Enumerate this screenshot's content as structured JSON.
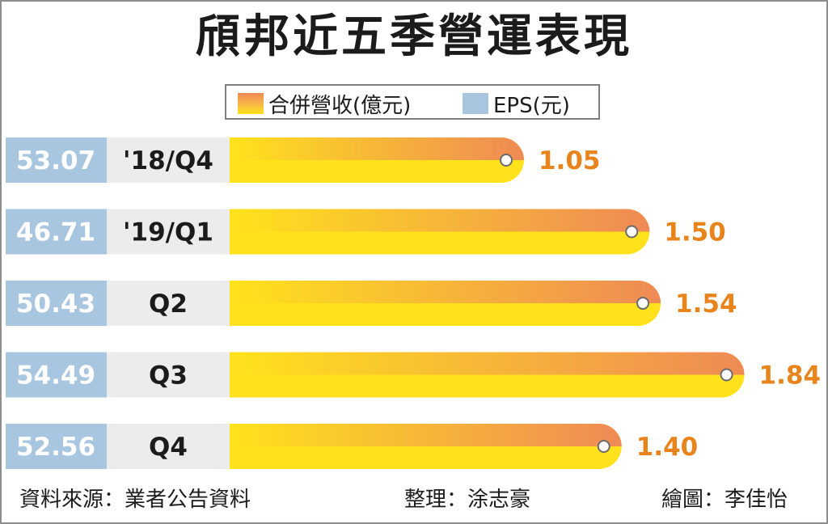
{
  "title": "頎邦近五季營運表現",
  "legend": {
    "revenue_label": "合併營收(億元)",
    "eps_label": "EPS(元)"
  },
  "colors": {
    "revenue_top": "#ef8a55",
    "revenue_bottom": "#ffe21c",
    "eps_box": "#a9c6e1",
    "label_box": "#ececec",
    "eps_text": "#e8841c"
  },
  "chart_data": {
    "type": "bar",
    "orientation": "horizontal",
    "categories": [
      "'18/Q4",
      "'19/Q1",
      "Q2",
      "Q3",
      "Q4"
    ],
    "series": [
      {
        "name": "合併營收(億元)",
        "values": [
          53.07,
          46.71,
          50.43,
          54.49,
          52.56
        ]
      },
      {
        "name": "EPS(元)",
        "values": [
          1.05,
          1.5,
          1.54,
          1.84,
          1.4
        ]
      }
    ],
    "revenue_labels": [
      "53.07",
      "46.71",
      "50.43",
      "54.49",
      "52.56"
    ],
    "eps_labels": [
      "1.05",
      "1.50",
      "1.54",
      "1.84",
      "1.40"
    ],
    "bar_length_encodes": "EPS(元)"
  },
  "footer": {
    "source": "資料來源：業者公告資料",
    "editor": "整理：涂志豪",
    "artist": "繪圖：李佳怡"
  }
}
